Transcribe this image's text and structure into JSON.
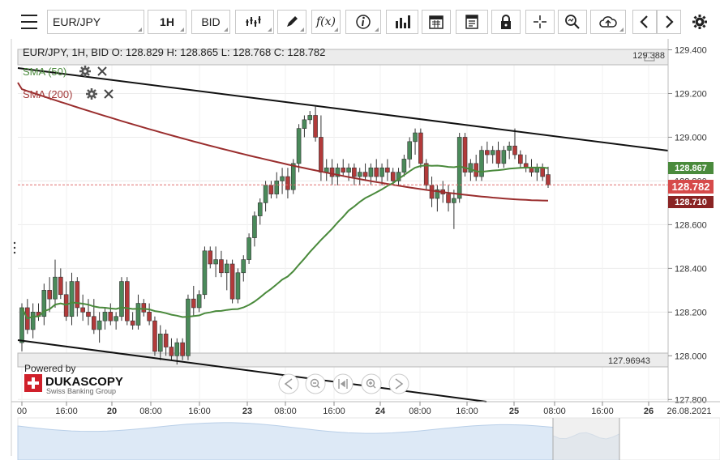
{
  "toolbar": {
    "symbol": "EUR/JPY",
    "timeframe": "1H",
    "side": "BID",
    "function_label": "f(x)",
    "icons": [
      "menu-icon",
      "line-chart-type-icon",
      "draw-pen-icon",
      "function-icon",
      "info-icon",
      "volume-bars-icon",
      "calendar-icon",
      "report-icon",
      "lock-icon",
      "crosshair-icon",
      "zoom-icon",
      "cloud-upload-icon",
      "chevron-left-icon",
      "chevron-right-icon",
      "gear-icon"
    ]
  },
  "header": {
    "ohlc_text": "EUR/JPY, 1H, BID   O: 128.829 H: 128.865 L: 128.768 C: 128.782"
  },
  "legend": {
    "sma50_label": "SMA (50)",
    "sma200_label": "SMA (200)",
    "sma50_color": "#4a8a3c",
    "sma200_color": "#a33a3a"
  },
  "levels": {
    "upper": "129.388",
    "lower": "127.96943"
  },
  "price_tags": {
    "sma50": "128.867",
    "close": "128.782",
    "sma200": "128.710"
  },
  "branding": {
    "powered_by": "Powered by",
    "brand": "DUKASCOPY",
    "tagline": "Swiss Banking Group"
  },
  "chart_data": {
    "type": "candlestick",
    "symbol": "EUR/JPY",
    "timeframe": "1H",
    "y_ticks": [
      "129.400",
      "129.200",
      "129.000",
      "128.800",
      "128.600",
      "128.400",
      "128.200",
      "128.000",
      "127.800"
    ],
    "x_ticks": [
      "00",
      "16:00",
      "20",
      "08:00",
      "16:00",
      "23",
      "08:00",
      "16:00",
      "24",
      "08:00",
      "16:00",
      "25",
      "08:00",
      "16:00",
      "26",
      "26.08.2021"
    ],
    "ylim": [
      127.79,
      129.45
    ],
    "last_ohlc": {
      "open": 128.829,
      "high": 128.865,
      "low": 128.768,
      "close": 128.782
    },
    "horizontal_levels": [
      129.388,
      127.96943
    ],
    "sma50_last": 128.867,
    "sma200_last": 128.71,
    "candles": [
      [
        128.06,
        128.24,
        128.02,
        128.22
      ],
      [
        128.22,
        128.26,
        128.1,
        128.12
      ],
      [
        128.12,
        128.24,
        128.08,
        128.2
      ],
      [
        128.2,
        128.24,
        128.16,
        128.18
      ],
      [
        128.18,
        128.33,
        128.14,
        128.3
      ],
      [
        128.3,
        128.36,
        128.2,
        128.26
      ],
      [
        128.26,
        128.44,
        128.22,
        128.36
      ],
      [
        128.36,
        128.4,
        128.26,
        128.28
      ],
      [
        128.28,
        128.34,
        128.16,
        128.18
      ],
      [
        128.18,
        128.38,
        128.14,
        128.34
      ],
      [
        128.34,
        128.36,
        128.18,
        128.22
      ],
      [
        128.22,
        128.28,
        128.16,
        128.2
      ],
      [
        128.2,
        128.26,
        128.14,
        128.18
      ],
      [
        128.18,
        128.26,
        128.1,
        128.12
      ],
      [
        128.12,
        128.2,
        128.06,
        128.16
      ],
      [
        128.16,
        128.22,
        128.12,
        128.2
      ],
      [
        128.2,
        128.24,
        128.14,
        128.16
      ],
      [
        128.16,
        128.2,
        128.12,
        128.18
      ],
      [
        128.18,
        128.36,
        128.16,
        128.34
      ],
      [
        128.34,
        128.36,
        128.14,
        128.16
      ],
      [
        128.16,
        128.2,
        128.12,
        128.14
      ],
      [
        128.14,
        128.28,
        128.12,
        128.24
      ],
      [
        128.24,
        128.26,
        128.18,
        128.2
      ],
      [
        128.2,
        128.24,
        128.14,
        128.16
      ],
      [
        128.16,
        128.18,
        128.0,
        128.02
      ],
      [
        128.02,
        128.14,
        127.98,
        128.1
      ],
      [
        128.1,
        128.12,
        128.0,
        128.04
      ],
      [
        128.04,
        128.08,
        127.98,
        128.0
      ],
      [
        128.0,
        128.08,
        127.96,
        128.06
      ],
      [
        128.06,
        128.08,
        127.98,
        128.0
      ],
      [
        128.0,
        128.28,
        127.98,
        128.26
      ],
      [
        128.26,
        128.32,
        128.18,
        128.22
      ],
      [
        128.22,
        128.3,
        128.2,
        128.28
      ],
      [
        128.28,
        128.5,
        128.26,
        128.48
      ],
      [
        128.48,
        128.5,
        128.4,
        128.42
      ],
      [
        128.42,
        128.5,
        128.36,
        128.44
      ],
      [
        128.44,
        128.48,
        128.36,
        128.38
      ],
      [
        128.38,
        128.44,
        128.3,
        128.42
      ],
      [
        128.42,
        128.44,
        128.24,
        128.26
      ],
      [
        128.26,
        128.4,
        128.24,
        128.38
      ],
      [
        128.38,
        128.46,
        128.34,
        128.44
      ],
      [
        128.44,
        128.56,
        128.42,
        128.54
      ],
      [
        128.54,
        128.66,
        128.5,
        128.64
      ],
      [
        128.64,
        128.72,
        128.6,
        128.7
      ],
      [
        128.7,
        128.8,
        128.66,
        128.78
      ],
      [
        128.78,
        128.8,
        128.72,
        128.74
      ],
      [
        128.74,
        128.84,
        128.72,
        128.8
      ],
      [
        128.8,
        128.86,
        128.74,
        128.82
      ],
      [
        128.82,
        128.86,
        128.72,
        128.76
      ],
      [
        128.76,
        128.9,
        128.74,
        128.88
      ],
      [
        128.88,
        129.06,
        128.84,
        129.04
      ],
      [
        129.04,
        129.1,
        129.0,
        129.08
      ],
      [
        129.08,
        129.12,
        129.06,
        129.1
      ],
      [
        129.1,
        129.14,
        128.98,
        129.0
      ],
      [
        129.0,
        129.1,
        128.8,
        128.84
      ],
      [
        128.84,
        128.9,
        128.8,
        128.86
      ],
      [
        128.86,
        128.9,
        128.78,
        128.82
      ],
      [
        128.82,
        128.88,
        128.78,
        128.86
      ],
      [
        128.86,
        128.9,
        128.82,
        128.84
      ],
      [
        128.84,
        128.88,
        128.8,
        128.86
      ],
      [
        128.86,
        128.88,
        128.78,
        128.82
      ],
      [
        128.82,
        128.86,
        128.78,
        128.84
      ],
      [
        128.84,
        128.88,
        128.8,
        128.82
      ],
      [
        128.82,
        128.88,
        128.78,
        128.86
      ],
      [
        128.86,
        128.9,
        128.8,
        128.82
      ],
      [
        128.82,
        128.88,
        128.78,
        128.86
      ],
      [
        128.86,
        128.9,
        128.8,
        128.84
      ],
      [
        128.84,
        128.86,
        128.78,
        128.8
      ],
      [
        128.8,
        128.86,
        128.78,
        128.84
      ],
      [
        128.84,
        128.92,
        128.82,
        128.9
      ],
      [
        128.9,
        129.0,
        128.86,
        128.98
      ],
      [
        128.98,
        129.04,
        128.92,
        129.02
      ],
      [
        129.02,
        129.04,
        128.86,
        128.88
      ],
      [
        128.88,
        128.9,
        128.76,
        128.78
      ],
      [
        128.78,
        128.82,
        128.68,
        128.72
      ],
      [
        128.72,
        128.78,
        128.66,
        128.76
      ],
      [
        128.76,
        128.8,
        128.7,
        128.74
      ],
      [
        128.74,
        128.78,
        128.66,
        128.7
      ],
      [
        128.7,
        128.76,
        128.58,
        128.72
      ],
      [
        128.72,
        129.02,
        128.7,
        129.0
      ],
      [
        129.0,
        129.02,
        128.82,
        128.84
      ],
      [
        128.84,
        128.9,
        128.8,
        128.88
      ],
      [
        128.88,
        128.92,
        128.8,
        128.82
      ],
      [
        128.82,
        128.96,
        128.8,
        128.94
      ],
      [
        128.94,
        128.98,
        128.88,
        128.92
      ],
      [
        128.92,
        128.96,
        128.88,
        128.94
      ],
      [
        128.94,
        128.98,
        128.86,
        128.88
      ],
      [
        128.88,
        128.96,
        128.86,
        128.94
      ],
      [
        128.94,
        128.98,
        128.9,
        128.96
      ],
      [
        128.96,
        129.04,
        128.9,
        128.92
      ],
      [
        128.92,
        128.94,
        128.86,
        128.88
      ],
      [
        128.88,
        128.92,
        128.84,
        128.86
      ],
      [
        128.86,
        128.9,
        128.82,
        128.84
      ],
      [
        128.84,
        128.88,
        128.8,
        128.86
      ],
      [
        128.86,
        128.88,
        128.8,
        128.82
      ],
      [
        128.829,
        128.865,
        128.768,
        128.782
      ]
    ]
  }
}
